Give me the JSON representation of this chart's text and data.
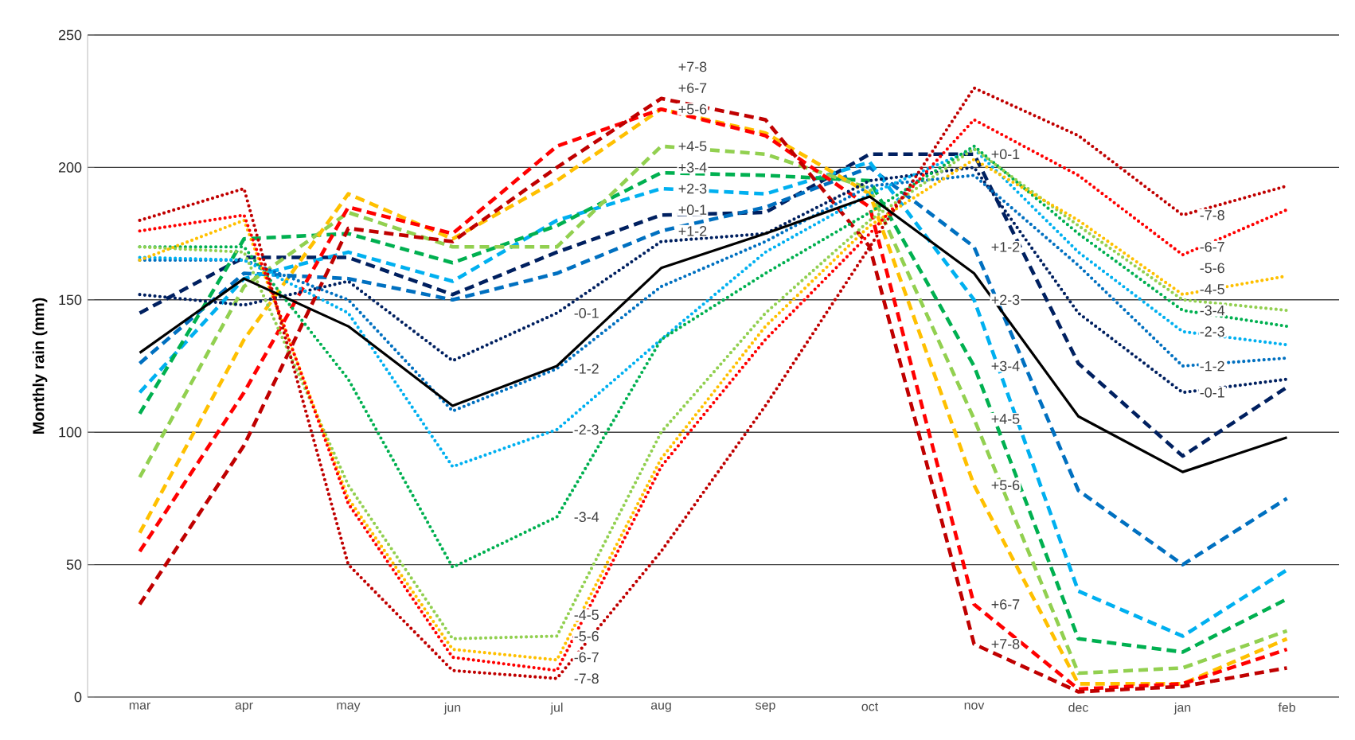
{
  "chart_data": {
    "type": "line",
    "ylabel": "Monthly rain (mm)",
    "categories": [
      "mar",
      "apr",
      "may",
      "jun",
      "jul",
      "aug",
      "sep",
      "oct",
      "nov",
      "dec",
      "jan",
      "feb"
    ],
    "ylim": [
      0,
      250
    ],
    "yticks": [
      0,
      50,
      100,
      150,
      200,
      250
    ],
    "grid": "y",
    "series": [
      {
        "name": "+0-1",
        "color": "#002060",
        "line_style": "dashed",
        "values": [
          145,
          166,
          166,
          152,
          168,
          182,
          183,
          205,
          205,
          126,
          91,
          117
        ]
      },
      {
        "name": "+1-2",
        "color": "#0070c0",
        "line_style": "dashed",
        "values": [
          126,
          160,
          158,
          150,
          160,
          176,
          185,
          200,
          170,
          78,
          50,
          75
        ]
      },
      {
        "name": "+2-3",
        "color": "#00b0f0",
        "line_style": "dashed",
        "values": [
          115,
          158,
          168,
          157,
          180,
          192,
          190,
          202,
          150,
          40,
          23,
          48
        ]
      },
      {
        "name": "+3-4",
        "color": "#00b050",
        "line_style": "dashed",
        "values": [
          107,
          173,
          175,
          164,
          178,
          198,
          197,
          195,
          125,
          22,
          17,
          37
        ]
      },
      {
        "name": "+4-5",
        "color": "#92d050",
        "line_style": "dashed",
        "values": [
          83,
          155,
          183,
          170,
          170,
          208,
          205,
          192,
          105,
          9,
          11,
          25
        ]
      },
      {
        "name": "+5-6",
        "color": "#ffc000",
        "line_style": "dashed",
        "values": [
          62,
          135,
          190,
          173,
          195,
          222,
          213,
          190,
          80,
          5,
          5,
          22
        ]
      },
      {
        "name": "+6-7",
        "color": "#ff0000",
        "line_style": "dashed",
        "values": [
          55,
          115,
          185,
          175,
          208,
          222,
          212,
          185,
          35,
          3,
          5,
          18
        ]
      },
      {
        "name": "+7-8",
        "color": "#c00000",
        "line_style": "dashed",
        "values": [
          35,
          95,
          177,
          172,
          200,
          226,
          218,
          170,
          20,
          2,
          4,
          11
        ]
      },
      {
        "name": "-0-1",
        "color": "#002060",
        "line_style": "dotted",
        "values": [
          152,
          148,
          157,
          127,
          145,
          172,
          175,
          195,
          200,
          145,
          115,
          120
        ]
      },
      {
        "name": "-1-2",
        "color": "#0070c0",
        "line_style": "dotted",
        "values": [
          165,
          165,
          150,
          108,
          124,
          155,
          172,
          193,
          197,
          163,
          125,
          128
        ]
      },
      {
        "name": "-2-3",
        "color": "#00b0f0",
        "line_style": "dotted",
        "values": [
          166,
          165,
          145,
          87,
          101,
          135,
          168,
          190,
          207,
          168,
          138,
          133
        ]
      },
      {
        "name": "-3-4",
        "color": "#00b050",
        "line_style": "dotted",
        "values": [
          170,
          170,
          120,
          49,
          68,
          135,
          160,
          183,
          208,
          175,
          146,
          140
        ]
      },
      {
        "name": "-4-5",
        "color": "#92d050",
        "line_style": "dotted",
        "values": [
          170,
          168,
          80,
          22,
          23,
          100,
          145,
          180,
          207,
          178,
          150,
          146
        ]
      },
      {
        "name": "-5-6",
        "color": "#ffc000",
        "line_style": "dotted",
        "values": [
          165,
          180,
          75,
          18,
          14,
          90,
          140,
          178,
          203,
          180,
          152,
          159
        ]
      },
      {
        "name": "-6-7",
        "color": "#ff0000",
        "line_style": "dotted",
        "values": [
          176,
          182,
          73,
          15,
          10,
          87,
          135,
          175,
          218,
          197,
          167,
          184
        ]
      },
      {
        "name": "-7-8",
        "color": "#c00000",
        "line_style": "dotted",
        "values": [
          180,
          192,
          50,
          10,
          7,
          55,
          110,
          170,
          230,
          212,
          182,
          193
        ]
      },
      {
        "color": "#000000",
        "line_style": "solid",
        "values": [
          130,
          158,
          140,
          110,
          125,
          162,
          175,
          189,
          160,
          106,
          85,
          98
        ]
      }
    ]
  }
}
